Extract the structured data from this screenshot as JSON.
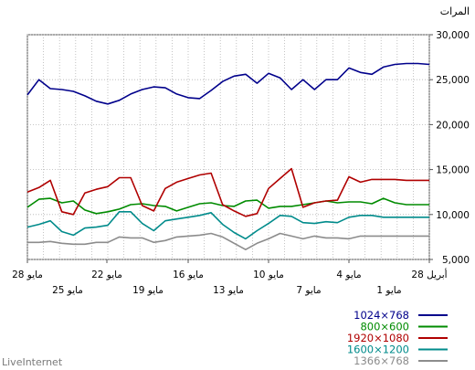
{
  "brand": "LiveInternet",
  "chart_data": {
    "type": "line",
    "unit_label": "المرات",
    "ylim": [
      5000,
      30000
    ],
    "y_ticks": [
      "30,000",
      "25,000",
      "20,000",
      "15,000",
      "10,000",
      "5,000"
    ],
    "y_tick_values": [
      30000,
      25000,
      20000,
      15000,
      10000,
      5000
    ],
    "x_ticks_top": [
      "28 مايو",
      "22 مايو",
      "16 مايو",
      "10 مايو",
      "4 مايو",
      "28 أبريل"
    ],
    "x_ticks_bottom": [
      "25 مايو",
      "19 مايو",
      "13 مايو",
      "7 مايو",
      "1 مايو"
    ],
    "grid": true,
    "legend_position": "bottom-right",
    "x_direction": "newest on the left (28 مايو) to oldest on the right (28 أبريل)",
    "series": [
      {
        "name": "1024×768",
        "color": "#00008b",
        "values": [
          23300,
          25000,
          24000,
          23900,
          23700,
          23200,
          22600,
          22300,
          22700,
          23400,
          23900,
          24200,
          24100,
          23400,
          23000,
          22900,
          23800,
          24800,
          25400,
          25600,
          24600,
          25700,
          25200,
          23900,
          25000,
          23900,
          25000,
          25000,
          26300,
          25800,
          25600,
          26400,
          26700,
          26800,
          26800,
          26700
        ]
      },
      {
        "name": "800×600",
        "color": "#008b00",
        "values": [
          10800,
          11700,
          11800,
          11300,
          11500,
          10500,
          10100,
          10300,
          10600,
          11100,
          11200,
          11000,
          10900,
          10400,
          10800,
          11200,
          11300,
          11000,
          10900,
          11500,
          11600,
          10700,
          10900,
          10900,
          11100,
          11300,
          11500,
          11300,
          11400,
          11400,
          11200,
          11800,
          11300,
          11100,
          11100,
          11100
        ]
      },
      {
        "name": "1920×1080",
        "color": "#b00000",
        "values": [
          12500,
          13000,
          13800,
          10300,
          10000,
          12400,
          12800,
          13100,
          14100,
          14100,
          11000,
          10400,
          12900,
          13600,
          14000,
          14400,
          14600,
          11100,
          10400,
          9800,
          10100,
          12900,
          14000,
          15100,
          10800,
          11300,
          11500,
          11600,
          14200,
          13600,
          13900,
          13900,
          13900,
          13800,
          13800,
          13800
        ]
      },
      {
        "name": "1600×1200",
        "color": "#008b8b",
        "values": [
          8600,
          8900,
          9300,
          8100,
          7700,
          8500,
          8600,
          8800,
          10300,
          10300,
          9000,
          8200,
          9300,
          9500,
          9700,
          9900,
          10200,
          8900,
          8000,
          7300,
          8200,
          9000,
          9900,
          9800,
          9100,
          9000,
          9200,
          9100,
          9700,
          9900,
          9900,
          9700,
          9700,
          9700,
          9700,
          9700
        ]
      },
      {
        "name": "1366×768",
        "color": "#8c8c8c",
        "values": [
          6900,
          6900,
          7000,
          6800,
          6700,
          6700,
          6900,
          6900,
          7500,
          7400,
          7400,
          6900,
          7100,
          7500,
          7600,
          7700,
          7900,
          7500,
          6800,
          6100,
          6800,
          7300,
          7900,
          7600,
          7300,
          7600,
          7400,
          7400,
          7300,
          7600,
          7600,
          7600,
          7600,
          7600,
          7600,
          7600
        ]
      }
    ]
  }
}
